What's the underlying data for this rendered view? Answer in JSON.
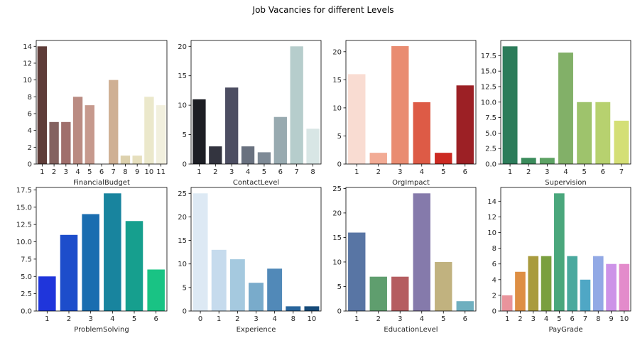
{
  "title": "Job Vacancies for different Levels",
  "chart_data": [
    {
      "type": "bar",
      "xlabel": "FinancialBudget",
      "categories": [
        "1",
        "2",
        "3",
        "4",
        "5",
        "6",
        "7",
        "8",
        "9",
        "10",
        "11"
      ],
      "values": [
        14,
        5,
        5,
        8,
        7,
        null,
        10,
        1,
        1,
        8,
        7
      ],
      "ylim": [
        0,
        14.7
      ],
      "yticks": [
        "0",
        "2",
        "4",
        "6",
        "8",
        "10",
        "12",
        "14"
      ],
      "ytick_values": [
        0,
        2,
        4,
        6,
        8,
        10,
        12,
        14
      ],
      "colors": [
        "#5e3c38",
        "#846260",
        "#a06f6c",
        "#ba8b82",
        "#c6998d",
        "#d1ae98",
        "#cfb094",
        "#ddd1ad",
        "#e6dfbd",
        "#ebe8cb",
        "#f2f0de"
      ]
    },
    {
      "type": "bar",
      "xlabel": "ContactLevel",
      "categories": [
        "1",
        "2",
        "3",
        "4",
        "5",
        "6",
        "7",
        "8"
      ],
      "values": [
        11,
        3,
        13,
        3,
        2,
        8,
        20,
        6
      ],
      "ylim": [
        0,
        21
      ],
      "yticks": [
        "0",
        "5",
        "10",
        "15",
        "20"
      ],
      "ytick_values": [
        0,
        5,
        10,
        15,
        20
      ],
      "colors": [
        "#1d1e24",
        "#33343f",
        "#4d4e62",
        "#69717f",
        "#7e8a96",
        "#98aab0",
        "#b6cdcc",
        "#d8e6e5"
      ]
    },
    {
      "type": "bar",
      "xlabel": "OrgImpact",
      "categories": [
        "1",
        "2",
        "3",
        "4",
        "5",
        "6"
      ],
      "values": [
        16,
        2,
        21,
        11,
        2,
        14
      ],
      "ylim": [
        0,
        22
      ],
      "yticks": [
        "0",
        "5",
        "10",
        "15",
        "20"
      ],
      "ytick_values": [
        0,
        5,
        10,
        15,
        20
      ],
      "colors": [
        "#f9dcd2",
        "#f2ab95",
        "#e98c71",
        "#dd5b46",
        "#cc2a22",
        "#9c2025"
      ]
    },
    {
      "type": "bar",
      "xlabel": "Supervision",
      "categories": [
        "1",
        "2",
        "3",
        "4",
        "5",
        "6",
        "7"
      ],
      "values": [
        19,
        1,
        1,
        18,
        10,
        10,
        7
      ],
      "ylim": [
        0,
        19.95
      ],
      "yticks": [
        "0.0",
        "2.5",
        "5.0",
        "7.5",
        "10.0",
        "12.5",
        "15.0",
        "17.5"
      ],
      "ytick_values": [
        0,
        2.5,
        5,
        7.5,
        10,
        12.5,
        15,
        17.5
      ],
      "colors": [
        "#2c7c5a",
        "#3b8c5c",
        "#5da264",
        "#82b068",
        "#9ec36c",
        "#b7d16f",
        "#d4df76"
      ]
    },
    {
      "type": "bar",
      "xlabel": "ProblemSolving",
      "categories": [
        "1",
        "2",
        "3",
        "4",
        "5",
        "6"
      ],
      "values": [
        5,
        11,
        14,
        17,
        13,
        6
      ],
      "ylim": [
        0,
        17.85
      ],
      "yticks": [
        "0.0",
        "2.5",
        "5.0",
        "7.5",
        "10.0",
        "12.5",
        "15.0",
        "17.5"
      ],
      "ytick_values": [
        0,
        2.5,
        5,
        7.5,
        10,
        12.5,
        15,
        17.5
      ],
      "colors": [
        "#1f35db",
        "#1d4dcb",
        "#1a6db0",
        "#18849e",
        "#169f8e",
        "#19c384"
      ]
    },
    {
      "type": "bar",
      "xlabel": "Experience",
      "categories": [
        "0",
        "1",
        "2",
        "3",
        "4",
        "8",
        "10"
      ],
      "values": [
        25,
        13,
        11,
        6,
        9,
        1,
        1
      ],
      "ylim": [
        0,
        26.25
      ],
      "yticks": [
        "0",
        "5",
        "10",
        "15",
        "20",
        "25"
      ],
      "ytick_values": [
        0,
        5,
        10,
        15,
        20,
        25
      ],
      "colors": [
        "#dde9f4",
        "#c6dbed",
        "#a5c9df",
        "#79abcb",
        "#5189b8",
        "#28659c",
        "#164a79"
      ]
    },
    {
      "type": "bar",
      "xlabel": "EducationLevel",
      "categories": [
        "1",
        "2",
        "3",
        "4",
        "5",
        "6"
      ],
      "values": [
        16,
        7,
        7,
        24,
        10,
        2
      ],
      "ylim": [
        0,
        25.2
      ],
      "yticks": [
        "0",
        "5",
        "10",
        "15",
        "20",
        "25"
      ],
      "ytick_values": [
        0,
        5,
        10,
        15,
        20,
        25
      ],
      "colors": [
        "#5875a4",
        "#5f9e6e",
        "#b55d60",
        "#857aab",
        "#c1b27f",
        "#6fafbf"
      ]
    },
    {
      "type": "bar",
      "xlabel": "PayGrade",
      "categories": [
        "1",
        "2",
        "3",
        "4",
        "5",
        "6",
        "7",
        "8",
        "9",
        "10"
      ],
      "values": [
        2,
        5,
        7,
        7,
        15,
        7,
        4,
        7,
        6,
        6
      ],
      "ylim": [
        0,
        15.75
      ],
      "yticks": [
        "0",
        "2",
        "4",
        "6",
        "8",
        "10",
        "12",
        "14"
      ],
      "ytick_values": [
        0,
        2,
        4,
        6,
        8,
        10,
        12,
        14
      ],
      "colors": [
        "#e9949c",
        "#de8f44",
        "#a99b3e",
        "#7a9f3f",
        "#4aa77c",
        "#4aa99e",
        "#4fa7c5",
        "#92a9e5",
        "#cd93e8",
        "#e38bcb"
      ]
    }
  ]
}
